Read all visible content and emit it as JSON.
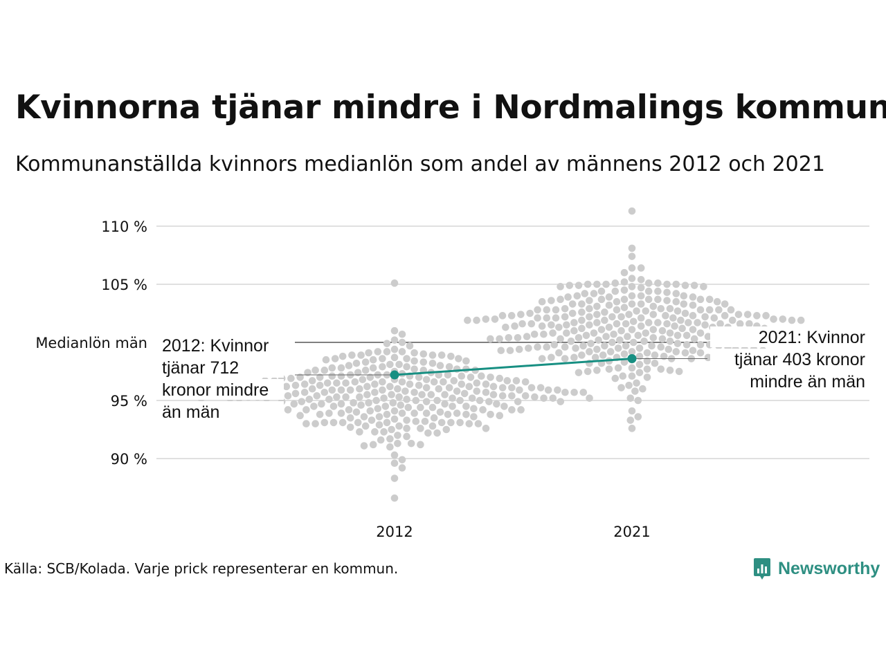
{
  "title": "Kvinnorna tjänar mindre i Nordmalings kommun",
  "subtitle": "Kommunanställda kvinnors medianlön som andel av männens 2012 och 2021",
  "source": "Källa: SCB/Kolada. Varje prick representerar en kommun.",
  "brand": "Newsworthy",
  "colors": {
    "accent": "#178f82",
    "dots": "#cccccc",
    "grid": "#e0e0e0",
    "text": "#111111"
  },
  "chart_data": {
    "type": "scatter",
    "title": "Kvinnorna tjänar mindre i Nordmalings kommun",
    "subtitle": "Kommunanställda kvinnors medianlön som andel av männens 2012 och 2021",
    "categories": [
      "2012",
      "2021"
    ],
    "ylim": [
      85,
      111
    ],
    "yticks": [
      90,
      95,
      105,
      110
    ],
    "ytick_labels": [
      "90 %",
      "95 %",
      "105 %",
      "110 %"
    ],
    "grid": true,
    "reference_line": {
      "value": 100,
      "label": "Medianlön män"
    },
    "highlight_series": {
      "color": "#178f82",
      "points": [
        {
          "x": "2012",
          "y": 97.2
        },
        {
          "x": "2021",
          "y": 98.6
        }
      ]
    },
    "annotations": [
      {
        "x": "2012",
        "text": "2012: Kvinnor tjänar 712 kronor mindre än män",
        "lines": [
          "2012: Kvinnor",
          "tjänar 712",
          "kronor mindre",
          "än män"
        ]
      },
      {
        "x": "2021",
        "text": "2021: Kvinnor tjänar 403 kronor mindre än män",
        "lines": [
          "2021: Kvinnor",
          "tjänar 403 kronor",
          "mindre än män"
        ]
      }
    ],
    "distribution": [
      {
        "x": "2012",
        "count": 290,
        "mean": 95.6,
        "sd": 2.1,
        "min": 86.6,
        "max": 105.1
      },
      {
        "x": "2021",
        "count": 290,
        "mean": 101.3,
        "sd": 2.4,
        "min": 92.6,
        "max": 111.3
      }
    ]
  }
}
